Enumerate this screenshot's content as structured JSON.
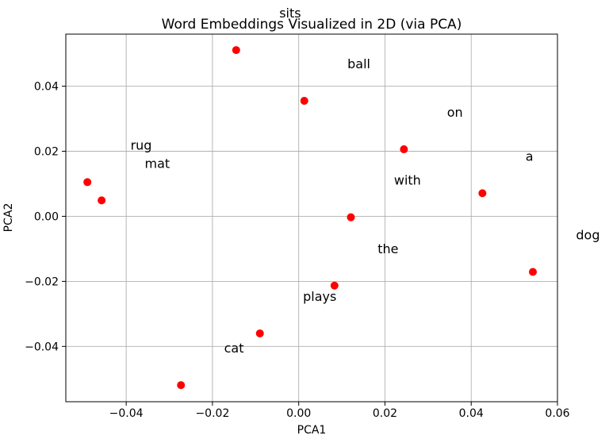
{
  "chart_data": {
    "type": "scatter",
    "title": "Word Embeddings Visualized in 2D (via PCA)",
    "xlabel": "PCA1",
    "ylabel": "PCA2",
    "xlim": [
      -0.054,
      0.06
    ],
    "ylim": [
      -0.057,
      0.056
    ],
    "xticks": [
      -0.04,
      -0.02,
      0.0,
      0.02,
      0.04,
      0.06
    ],
    "xtick_labels": [
      "−0.04",
      "−0.02",
      "0.00",
      "0.02",
      "0.04",
      "0.06"
    ],
    "yticks": [
      0.04,
      0.02,
      0.0,
      -0.02,
      -0.04
    ],
    "ytick_labels": [
      "0.04",
      "0.02",
      "0.00",
      "−0.02",
      "−0.04"
    ],
    "grid": true,
    "grid_color": "#b0b0b0",
    "spine_color": "#000000",
    "marker": {
      "shape": "circle",
      "color": "#ff0000",
      "radius_px": 5
    },
    "annotation_offset": [
      0.01,
      0.01
    ],
    "points": [
      {
        "word": "sits",
        "x": -0.0145,
        "y": 0.0511
      },
      {
        "word": "ball",
        "x": 0.0013,
        "y": 0.0355
      },
      {
        "word": "on",
        "x": 0.0244,
        "y": 0.0206
      },
      {
        "word": "rug",
        "x": -0.049,
        "y": 0.0105
      },
      {
        "word": "mat",
        "x": -0.0457,
        "y": 0.0049
      },
      {
        "word": "a",
        "x": 0.0426,
        "y": 0.0071
      },
      {
        "word": "with",
        "x": 0.0121,
        "y": -0.0003
      },
      {
        "word": "dog",
        "x": 0.0543,
        "y": -0.0171
      },
      {
        "word": "the",
        "x": 0.0083,
        "y": -0.0213
      },
      {
        "word": "plays",
        "x": -0.009,
        "y": -0.036
      },
      {
        "word": "cat",
        "x": -0.0273,
        "y": -0.0519
      }
    ]
  }
}
